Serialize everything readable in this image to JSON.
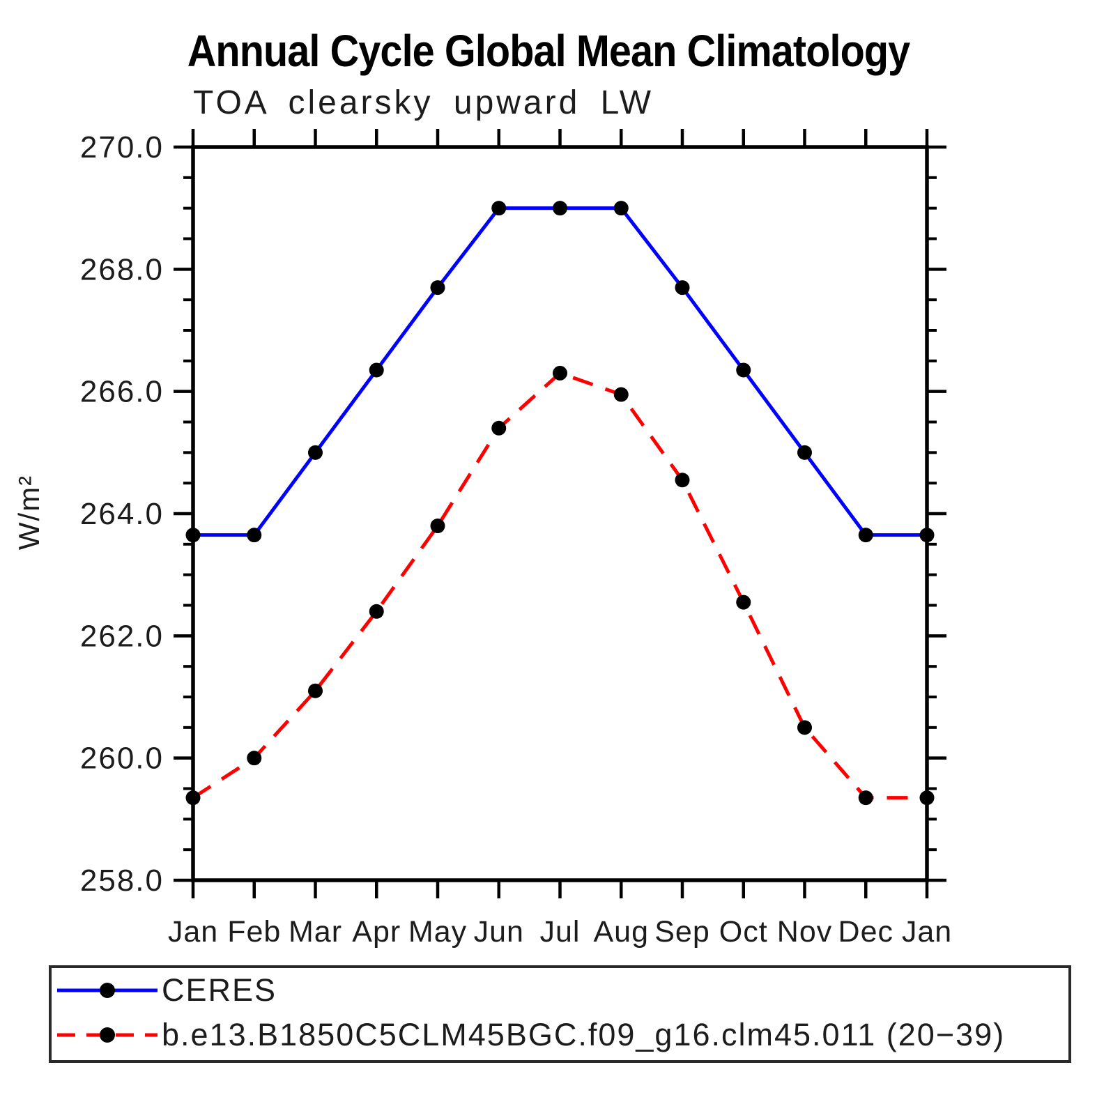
{
  "title": "Annual Cycle Global Mean Climatology",
  "subtitle": "TOA clearsky upward LW",
  "ylabel": "W/m²",
  "colors": {
    "ceres_line": "#0000ff",
    "model_line": "#ff0000",
    "marker": "#000000",
    "axis": "#000000"
  },
  "chart_data": {
    "type": "line",
    "categories": [
      "Jan",
      "Feb",
      "Mar",
      "Apr",
      "May",
      "Jun",
      "Jul",
      "Aug",
      "Sep",
      "Oct",
      "Nov",
      "Dec",
      "Jan"
    ],
    "series": [
      {
        "name": "CERES",
        "color": "#0000ff",
        "style": "solid",
        "marker": "filled-circle",
        "values": [
          263.65,
          263.65,
          265.0,
          266.35,
          267.7,
          269.0,
          269.0,
          269.0,
          267.7,
          266.35,
          265.0,
          263.65,
          263.65
        ]
      },
      {
        "name": "b.e13.B1850C5CLM45BGC.f09_g16.clm45.011 (20−39)",
        "color": "#ff0000",
        "style": "dashed",
        "marker": "filled-circle",
        "values": [
          259.35,
          260.0,
          261.1,
          262.4,
          263.8,
          265.4,
          266.3,
          265.95,
          264.55,
          262.55,
          260.5,
          259.35,
          259.35
        ]
      }
    ],
    "ylim": [
      258.0,
      270.0
    ],
    "ytick_major": [
      258,
      260,
      262,
      264,
      266,
      268,
      270
    ],
    "ytick_labels": [
      "258.0",
      "260.0",
      "262.0",
      "264.0",
      "266.0",
      "268.0",
      "270.0"
    ],
    "ytick_minor_step": 0.5,
    "xlabel": "",
    "ylabel": "W/m²",
    "grid": false,
    "legend_position": "bottom"
  },
  "legend": {
    "items": [
      {
        "label": "CERES"
      },
      {
        "label": "b.e13.B1850C5CLM45BGC.f09_g16.clm45.011 (20−39)"
      }
    ]
  }
}
